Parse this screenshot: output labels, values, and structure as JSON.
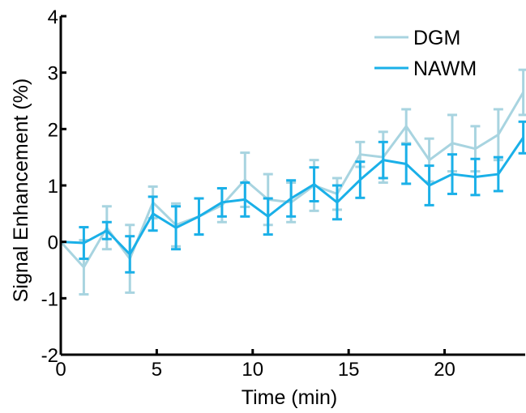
{
  "chart_data": {
    "type": "line",
    "xlabel": "Time (min)",
    "ylabel": "Signal Enhancement (%)",
    "xlim": [
      0,
      24.2
    ],
    "ylim": [
      -2,
      4
    ],
    "xticks": [
      "0",
      "5",
      "10",
      "15",
      "20"
    ],
    "yticks": [
      "-2",
      "-1",
      "0",
      "1",
      "2",
      "3",
      "4"
    ],
    "xtick_values": [
      0,
      5,
      10,
      15,
      20
    ],
    "ytick_values": [
      -2,
      -1,
      0,
      1,
      2,
      3,
      4
    ],
    "grid": false,
    "legend_position": "top-right",
    "x": [
      0,
      1.2,
      2.4,
      3.6,
      4.8,
      6.0,
      7.2,
      8.4,
      9.6,
      10.8,
      12.0,
      13.2,
      14.4,
      15.6,
      16.8,
      18.0,
      19.2,
      20.4,
      21.6,
      22.8,
      24.1
    ],
    "series": [
      {
        "name": "DGM",
        "color": "#a8d4e0",
        "values": [
          0.0,
          -0.45,
          0.25,
          -0.3,
          0.7,
          0.3,
          0.45,
          0.65,
          1.1,
          0.75,
          0.7,
          1.0,
          0.85,
          1.55,
          1.5,
          2.05,
          1.45,
          1.75,
          1.65,
          1.9,
          2.65
        ],
        "err": [
          0.0,
          0.48,
          0.38,
          0.6,
          0.28,
          0.38,
          0.32,
          0.3,
          0.48,
          0.45,
          0.35,
          0.45,
          0.28,
          0.22,
          0.45,
          0.3,
          0.38,
          0.5,
          0.4,
          0.45,
          0.4
        ]
      },
      {
        "name": "NAWM",
        "color": "#1ab0e8",
        "values": [
          0.0,
          -0.02,
          0.2,
          -0.22,
          0.5,
          0.25,
          0.45,
          0.7,
          0.75,
          0.45,
          0.77,
          1.02,
          0.7,
          1.1,
          1.45,
          1.38,
          1.0,
          1.2,
          1.15,
          1.2,
          1.85
        ],
        "err": [
          0.0,
          0.28,
          0.15,
          0.32,
          0.3,
          0.38,
          0.32,
          0.25,
          0.3,
          0.32,
          0.32,
          0.3,
          0.3,
          0.32,
          0.32,
          0.35,
          0.35,
          0.35,
          0.32,
          0.3,
          0.28
        ]
      }
    ]
  }
}
